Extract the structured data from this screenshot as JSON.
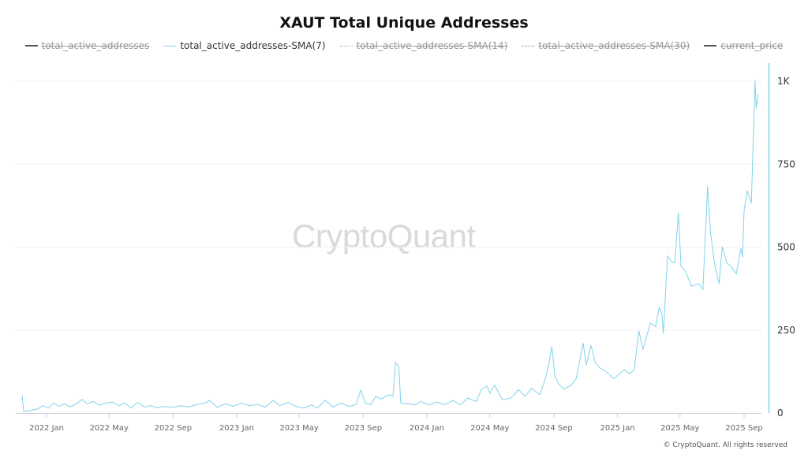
{
  "chart_data": {
    "type": "line",
    "title": "XAUT Total Unique Addresses",
    "legend": {
      "placement": "top",
      "items": [
        {
          "name": "total_active_addresses",
          "visible": false,
          "style": "solid"
        },
        {
          "name": "total_active_addresses-SMA(7)",
          "visible": true,
          "style": "solid"
        },
        {
          "name": "total_active_addresses-SMA(14)",
          "visible": false,
          "style": "dotted"
        },
        {
          "name": "total_active_addresses-SMA(30)",
          "visible": false,
          "style": "dashed"
        },
        {
          "name": "current_price",
          "visible": false,
          "style": "solid"
        }
      ]
    },
    "x_ticks": [
      "2022 Jan",
      "2022 May",
      "2022 Sep",
      "2023 Jan",
      "2023 May",
      "2023 Sep",
      "2024 Jan",
      "2024 May",
      "2024 Sep",
      "2025 Jan",
      "2025 May",
      "2025 Sep"
    ],
    "x_tick_dates": [
      "2022-01-01",
      "2022-05-01",
      "2022-09-01",
      "2023-01-01",
      "2023-05-01",
      "2023-09-01",
      "2024-01-01",
      "2024-05-01",
      "2024-09-01",
      "2025-01-01",
      "2025-05-01",
      "2025-09-01"
    ],
    "y_ticks": [
      "0",
      "250",
      "500",
      "750",
      "1K"
    ],
    "y_tick_values": [
      0,
      250,
      500,
      750,
      1000
    ],
    "ylim": [
      0,
      1000
    ],
    "y_axis_side": "right",
    "grid": true,
    "series": [
      {
        "name": "total_active_addresses-SMA(7)",
        "color": "#7fd3ec",
        "points": [
          [
            "2021-11-15",
            53
          ],
          [
            "2021-11-18",
            5
          ],
          [
            "2021-12-01",
            8
          ],
          [
            "2021-12-15",
            12
          ],
          [
            "2021-12-25",
            22
          ],
          [
            "2022-01-05",
            15
          ],
          [
            "2022-01-15",
            30
          ],
          [
            "2022-01-25",
            20
          ],
          [
            "2022-02-05",
            28
          ],
          [
            "2022-02-15",
            18
          ],
          [
            "2022-03-01",
            30
          ],
          [
            "2022-03-10",
            41
          ],
          [
            "2022-03-20",
            28
          ],
          [
            "2022-04-01",
            35
          ],
          [
            "2022-04-12",
            24
          ],
          [
            "2022-04-25",
            30
          ],
          [
            "2022-05-08",
            33
          ],
          [
            "2022-05-20",
            22
          ],
          [
            "2022-06-01",
            30
          ],
          [
            "2022-06-12",
            15
          ],
          [
            "2022-06-25",
            32
          ],
          [
            "2022-07-08",
            18
          ],
          [
            "2022-07-20",
            22
          ],
          [
            "2022-08-01",
            16
          ],
          [
            "2022-08-15",
            20
          ],
          [
            "2022-09-01",
            17
          ],
          [
            "2022-09-15",
            22
          ],
          [
            "2022-10-01",
            18
          ],
          [
            "2022-10-15",
            25
          ],
          [
            "2022-11-01",
            30
          ],
          [
            "2022-11-10",
            38
          ],
          [
            "2022-11-25",
            17
          ],
          [
            "2022-12-10",
            28
          ],
          [
            "2022-12-25",
            20
          ],
          [
            "2023-01-10",
            30
          ],
          [
            "2023-01-25",
            22
          ],
          [
            "2023-02-10",
            26
          ],
          [
            "2023-02-25",
            18
          ],
          [
            "2023-03-12",
            38
          ],
          [
            "2023-03-25",
            22
          ],
          [
            "2023-04-10",
            32
          ],
          [
            "2023-04-25",
            20
          ],
          [
            "2023-05-10",
            15
          ],
          [
            "2023-05-25",
            25
          ],
          [
            "2023-06-05",
            15
          ],
          [
            "2023-06-20",
            38
          ],
          [
            "2023-07-05",
            18
          ],
          [
            "2023-07-20",
            30
          ],
          [
            "2023-08-05",
            20
          ],
          [
            "2023-08-18",
            25
          ],
          [
            "2023-08-27",
            69
          ],
          [
            "2023-09-05",
            30
          ],
          [
            "2023-09-15",
            25
          ],
          [
            "2023-09-25",
            50
          ],
          [
            "2023-10-05",
            42
          ],
          [
            "2023-10-20",
            55
          ],
          [
            "2023-10-28",
            50
          ],
          [
            "2023-11-02",
            152
          ],
          [
            "2023-11-08",
            140
          ],
          [
            "2023-11-12",
            30
          ],
          [
            "2023-11-25",
            28
          ],
          [
            "2023-12-10",
            25
          ],
          [
            "2023-12-20",
            35
          ],
          [
            "2024-01-05",
            25
          ],
          [
            "2024-01-20",
            33
          ],
          [
            "2024-02-05",
            25
          ],
          [
            "2024-02-20",
            38
          ],
          [
            "2024-03-05",
            25
          ],
          [
            "2024-03-20",
            45
          ],
          [
            "2024-04-05",
            35
          ],
          [
            "2024-04-15",
            72
          ],
          [
            "2024-04-25",
            81
          ],
          [
            "2024-05-01",
            60
          ],
          [
            "2024-05-10",
            84
          ],
          [
            "2024-05-25",
            40
          ],
          [
            "2024-06-10",
            45
          ],
          [
            "2024-06-25",
            70
          ],
          [
            "2024-07-08",
            50
          ],
          [
            "2024-07-20",
            75
          ],
          [
            "2024-08-05",
            55
          ],
          [
            "2024-08-15",
            100
          ],
          [
            "2024-08-22",
            145
          ],
          [
            "2024-08-28",
            200
          ],
          [
            "2024-09-03",
            110
          ],
          [
            "2024-09-10",
            88
          ],
          [
            "2024-09-20",
            72
          ],
          [
            "2024-10-05",
            85
          ],
          [
            "2024-10-14",
            104
          ],
          [
            "2024-10-27",
            211
          ],
          [
            "2024-11-02",
            145
          ],
          [
            "2024-11-11",
            204
          ],
          [
            "2024-11-20",
            150
          ],
          [
            "2024-11-28",
            136
          ],
          [
            "2024-12-10",
            125
          ],
          [
            "2024-12-25",
            104
          ],
          [
            "2025-01-05",
            118
          ],
          [
            "2025-01-14",
            131
          ],
          [
            "2025-01-25",
            118
          ],
          [
            "2025-02-02",
            131
          ],
          [
            "2025-02-11",
            247
          ],
          [
            "2025-02-19",
            192
          ],
          [
            "2025-03-05",
            271
          ],
          [
            "2025-03-15",
            260
          ],
          [
            "2025-03-22",
            318
          ],
          [
            "2025-03-27",
            300
          ],
          [
            "2025-03-30",
            240
          ],
          [
            "2025-04-07",
            473
          ],
          [
            "2025-04-15",
            455
          ],
          [
            "2025-04-21",
            453
          ],
          [
            "2025-04-28",
            603
          ],
          [
            "2025-05-03",
            442
          ],
          [
            "2025-05-12",
            425
          ],
          [
            "2025-05-23",
            382
          ],
          [
            "2025-06-05",
            390
          ],
          [
            "2025-06-14",
            373
          ],
          [
            "2025-06-23",
            682
          ],
          [
            "2025-06-29",
            539
          ],
          [
            "2025-07-07",
            444
          ],
          [
            "2025-07-15",
            390
          ],
          [
            "2025-07-21",
            501
          ],
          [
            "2025-07-30",
            453
          ],
          [
            "2025-08-08",
            440
          ],
          [
            "2025-08-17",
            420
          ],
          [
            "2025-08-26",
            496
          ],
          [
            "2025-08-29",
            469
          ],
          [
            "2025-09-01",
            610
          ],
          [
            "2025-09-07",
            670
          ],
          [
            "2025-09-15",
            632
          ],
          [
            "2025-09-22",
            1002
          ],
          [
            "2025-09-24",
            919
          ],
          [
            "2025-09-28",
            960
          ]
        ]
      }
    ]
  },
  "watermark": "CryptoQuant",
  "footer": "© CryptoQuant. All rights reserved"
}
